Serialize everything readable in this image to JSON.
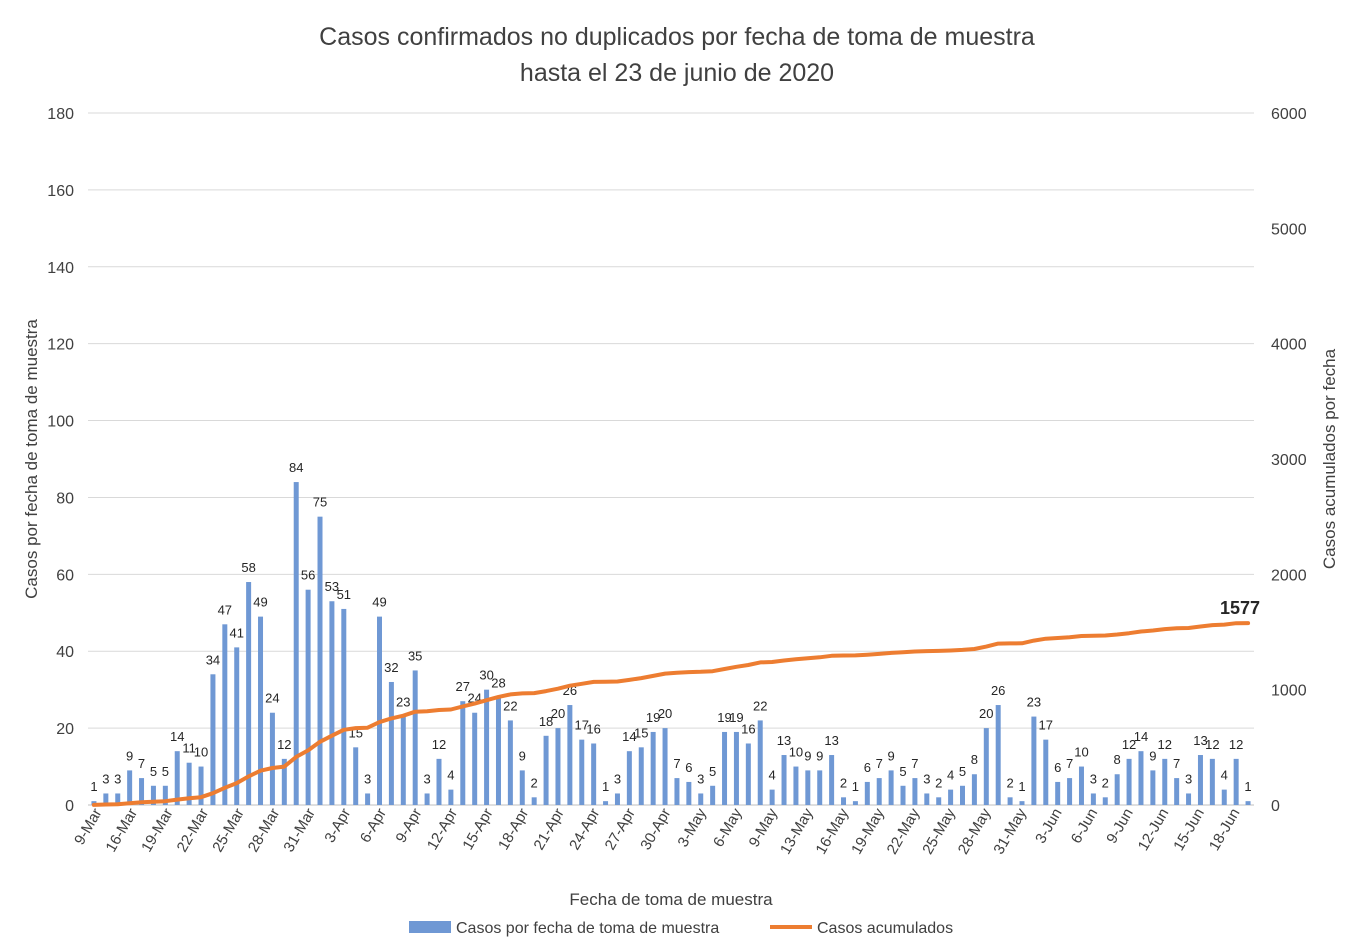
{
  "chart_data": {
    "type": "bar",
    "title": "Casos confirmados no duplicados por fecha de toma de muestra",
    "subtitle": "hasta el 23 de junio de 2020",
    "xlabel": "Fecha de toma de muestra",
    "ylabel": "Casos por fecha de toma de muestra",
    "y2label": "Casos acumulados por fecha",
    "ylim": [
      0,
      180
    ],
    "yticks": [
      "0",
      "20",
      "40",
      "60",
      "80",
      "100",
      "120",
      "140",
      "160",
      "180"
    ],
    "y2lim": [
      0,
      6000
    ],
    "y2ticks": [
      "0",
      "1000",
      "2000",
      "3000",
      "4000",
      "5000",
      "6000"
    ],
    "grid": "horizontal",
    "legend_position": "bottom",
    "x_tick_labels": [
      "9-Mar",
      "16-Mar",
      "19-Mar",
      "22-Mar",
      "25-Mar",
      "28-Mar",
      "31-Mar",
      "3-Apr",
      "6-Apr",
      "9-Apr",
      "12-Apr",
      "15-Apr",
      "18-Apr",
      "21-Apr",
      "24-Apr",
      "27-Apr",
      "30-Apr",
      "3-May",
      "6-May",
      "9-May",
      "13-May",
      "16-May",
      "19-May",
      "22-May",
      "25-May",
      "28-May",
      "31-May",
      "3-Jun",
      "6-Jun",
      "9-Jun",
      "12-Jun",
      "15-Jun",
      "18-Jun"
    ],
    "series": [
      {
        "name": "Casos por fecha de toma de muestra",
        "type": "bar",
        "axis": "left",
        "color": "#6f98d4",
        "values": [
          1,
          3,
          3,
          9,
          7,
          5,
          5,
          14,
          11,
          10,
          34,
          47,
          41,
          58,
          49,
          24,
          12,
          84,
          56,
          75,
          53,
          51,
          15,
          3,
          49,
          32,
          23,
          35,
          3,
          12,
          4,
          27,
          24,
          30,
          28,
          22,
          9,
          2,
          18,
          20,
          26,
          17,
          16,
          1,
          3,
          14,
          15,
          19,
          20,
          7,
          6,
          3,
          5,
          19,
          19,
          16,
          22,
          4,
          13,
          10,
          9,
          9,
          13,
          2,
          1,
          6,
          7,
          9,
          5,
          7,
          3,
          2,
          4,
          5,
          8,
          20,
          26,
          2,
          1,
          23,
          17,
          6,
          7,
          10,
          3,
          2,
          8,
          12,
          14,
          9,
          12,
          7,
          3,
          13,
          12,
          4,
          12,
          1
        ]
      },
      {
        "name": "Casos acumulados",
        "type": "line",
        "axis": "right",
        "color": "#ed7d31",
        "final_value_label": "1577"
      }
    ]
  }
}
